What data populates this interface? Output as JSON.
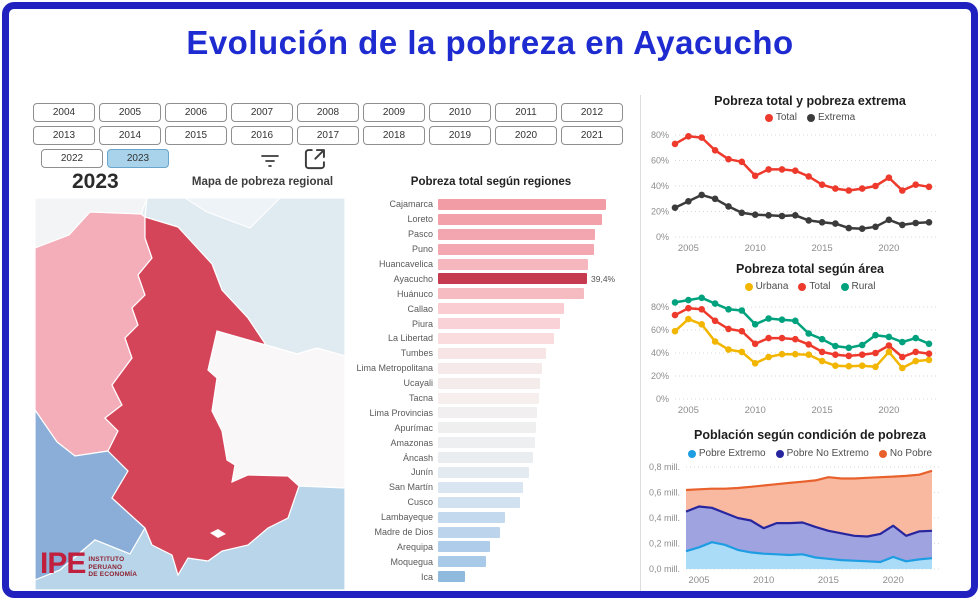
{
  "title": "Evolución de la pobreza en Ayacucho",
  "theme": {
    "border_color": "#2121bf",
    "title_color": "#1d2bd0",
    "selected_year_bg": "#a9d3ea",
    "accent_red": "#ee3a2c",
    "accent_dark": "#3b3b3b",
    "accent_yellow": "#f2b600",
    "accent_teal": "#00a27e",
    "accent_blue": "#1e9de3",
    "accent_navy": "#28269f",
    "accent_orange": "#e8612c"
  },
  "year_filter": {
    "years": [
      "2004",
      "2005",
      "2006",
      "2007",
      "2008",
      "2009",
      "2010",
      "2011",
      "2012",
      "2013",
      "2014",
      "2015",
      "2016",
      "2017",
      "2018",
      "2019",
      "2020",
      "2021",
      "2022",
      "2023"
    ],
    "selected": "2023"
  },
  "toolbar": {
    "filter_icon": "filter-icon",
    "expand_icon": "expand-icon"
  },
  "map_panel": {
    "year_label": "2023",
    "title": "Mapa de pobreza regional",
    "logo": {
      "acronym": "IPE",
      "lines": [
        "INSTITUTO",
        "PERUANO",
        "DE ECONOMÍA"
      ]
    },
    "region_colors": {
      "background": "#e7eef3",
      "top-left": "#f3f4f6",
      "northeast": "#e0ebf1",
      "north-sliver": "#eef3f7",
      "east": "#f9f7f8",
      "huancavelica": "#f3aeba",
      "ica": "#8aaed8",
      "south": "#b9d5e9",
      "ayacucho": "#d5455a"
    }
  },
  "chart_data": [
    {
      "id": "regions-bar",
      "type": "bar",
      "title": "Pobreza total según regiones",
      "orientation": "horizontal",
      "xlim": [
        0,
        46
      ],
      "categories": [
        "Cajamarca",
        "Loreto",
        "Pasco",
        "Puno",
        "Huancavelica",
        "Ayacucho",
        "Huánuco",
        "Callao",
        "Piura",
        "La Libertad",
        "Tumbes",
        "Lima Metropolitana",
        "Ucayali",
        "Tacna",
        "Lima Provincias",
        "Apurímac",
        "Amazonas",
        "Áncash",
        "Junín",
        "San Martín",
        "Cusco",
        "Lambayeque",
        "Madre de Dios",
        "Arequipa",
        "Moquegua",
        "Ica"
      ],
      "values": [
        44.3,
        43.3,
        41.6,
        41.2,
        39.7,
        39.4,
        38.5,
        33.4,
        32.2,
        30.6,
        28.5,
        27.5,
        27.0,
        26.6,
        26.2,
        25.9,
        25.7,
        25.2,
        24.1,
        22.5,
        21.6,
        17.6,
        16.3,
        13.8,
        12.7,
        7.0
      ],
      "bar_colors": [
        "#f29ca6",
        "#f2a0aa",
        "#f3a6af",
        "#f3a8b1",
        "#f6b6bd",
        "#c63a50",
        "#f6bac1",
        "#f9cdd2",
        "#f9d2d7",
        "#fadcdf",
        "#f7e5e6",
        "#f5e9e9",
        "#f4ebeb",
        "#f6efee",
        "#f1efef",
        "#f0efef",
        "#eeeff0",
        "#eaedf0",
        "#e3eaf0",
        "#d9e5f0",
        "#d2e1ef",
        "#c3d9ee",
        "#bdd5ec",
        "#afcdea",
        "#a9c9e8",
        "#8fbade"
      ],
      "highlight": {
        "category": "Ayacucho",
        "label": "39,4%"
      }
    },
    {
      "id": "total-extrema",
      "type": "line",
      "title": "Pobreza total y pobreza extrema",
      "x": [
        2004,
        2005,
        2006,
        2007,
        2008,
        2009,
        2010,
        2011,
        2012,
        2013,
        2014,
        2015,
        2016,
        2017,
        2018,
        2019,
        2020,
        2021,
        2022,
        2023
      ],
      "xticks": [
        2005,
        2010,
        2015,
        2020
      ],
      "ylim": [
        0,
        88
      ],
      "yticks": [
        {
          "v": 0,
          "label": "0%"
        },
        {
          "v": 20,
          "label": "20%"
        },
        {
          "v": 40,
          "label": "40%"
        },
        {
          "v": 60,
          "label": "60%"
        },
        {
          "v": 80,
          "label": "80%"
        }
      ],
      "grid": true,
      "legend_position": "top",
      "series": [
        {
          "name": "Total",
          "color": "#ee3a2c",
          "values": [
            73,
            79,
            78,
            68,
            61,
            59,
            48,
            53,
            53,
            52,
            47.5,
            41,
            38,
            36.5,
            38,
            40,
            46.5,
            36.5,
            41,
            39.4
          ]
        },
        {
          "name": "Extrema",
          "color": "#3b3b3b",
          "values": [
            23,
            28,
            33,
            30,
            24,
            19,
            17.5,
            17,
            16.5,
            17,
            13,
            11.5,
            10.5,
            7,
            6.5,
            8,
            13.5,
            9.5,
            11,
            11.5
          ]
        }
      ]
    },
    {
      "id": "area-urbana-rural",
      "type": "line",
      "title": "Pobreza total según área",
      "x": [
        2004,
        2005,
        2006,
        2007,
        2008,
        2009,
        2010,
        2011,
        2012,
        2013,
        2014,
        2015,
        2016,
        2017,
        2018,
        2019,
        2020,
        2021,
        2022,
        2023
      ],
      "xticks": [
        2005,
        2010,
        2015,
        2020
      ],
      "ylim": [
        0,
        92
      ],
      "yticks": [
        {
          "v": 0,
          "label": "0%"
        },
        {
          "v": 20,
          "label": "20%"
        },
        {
          "v": 40,
          "label": "40%"
        },
        {
          "v": 60,
          "label": "60%"
        },
        {
          "v": 80,
          "label": "80%"
        }
      ],
      "grid": true,
      "legend_position": "top",
      "series": [
        {
          "name": "Urbana",
          "color": "#f2b600",
          "values": [
            59,
            69.5,
            65,
            50,
            43,
            41,
            31,
            36.5,
            39,
            39,
            38.5,
            33,
            29,
            28.5,
            29,
            28,
            41,
            27,
            33,
            34
          ]
        },
        {
          "name": "Total",
          "color": "#ee3a2c",
          "values": [
            73,
            79,
            78,
            68,
            61,
            59,
            48,
            53,
            53,
            52,
            47.5,
            41,
            38.5,
            37.5,
            38.5,
            40,
            46.5,
            36.5,
            41,
            39.4
          ]
        },
        {
          "name": "Rural",
          "color": "#00a27e",
          "values": [
            84,
            86,
            88,
            83,
            78,
            77,
            65,
            70,
            69,
            68,
            57,
            52,
            46,
            44.5,
            47,
            55.5,
            54,
            49.5,
            53,
            48
          ]
        }
      ]
    },
    {
      "id": "poblacion-condicion",
      "type": "area",
      "title": "Población según condición de pobreza",
      "x": [
        2004,
        2005,
        2006,
        2007,
        2008,
        2009,
        2010,
        2011,
        2012,
        2013,
        2014,
        2015,
        2016,
        2017,
        2018,
        2019,
        2020,
        2021,
        2022,
        2023
      ],
      "xticks": [
        2005,
        2010,
        2015,
        2020
      ],
      "ylim": [
        0,
        0.8
      ],
      "yticks": [
        {
          "v": 0,
          "label": "0,0 mill."
        },
        {
          "v": 0.2,
          "label": "0,2 mill."
        },
        {
          "v": 0.4,
          "label": "0,4 mill."
        },
        {
          "v": 0.6,
          "label": "0,6 mill."
        },
        {
          "v": 0.8,
          "label": "0,8 mill."
        }
      ],
      "grid": true,
      "legend_position": "top",
      "stacked": true,
      "series": [
        {
          "name": "Pobre Extremo",
          "color": "#1e9de3",
          "fill": "#aadcf7",
          "values": [
            0.14,
            0.17,
            0.21,
            0.19,
            0.15,
            0.13,
            0.12,
            0.115,
            0.11,
            0.115,
            0.09,
            0.08,
            0.07,
            0.065,
            0.06,
            0.055,
            0.095,
            0.06,
            0.075,
            0.085
          ]
        },
        {
          "name": "Pobre No Extremo",
          "color": "#28269f",
          "fill": "#9fa3e0",
          "values": [
            0.31,
            0.32,
            0.27,
            0.25,
            0.25,
            0.25,
            0.2,
            0.245,
            0.25,
            0.25,
            0.24,
            0.22,
            0.21,
            0.195,
            0.195,
            0.22,
            0.245,
            0.2,
            0.22,
            0.215
          ]
        },
        {
          "name": "No Pobre",
          "color": "#e8612c",
          "fill": "#f9b9a1",
          "values": [
            0.17,
            0.135,
            0.15,
            0.19,
            0.235,
            0.265,
            0.335,
            0.305,
            0.315,
            0.32,
            0.365,
            0.42,
            0.43,
            0.45,
            0.46,
            0.445,
            0.385,
            0.47,
            0.445,
            0.47
          ]
        }
      ]
    }
  ]
}
